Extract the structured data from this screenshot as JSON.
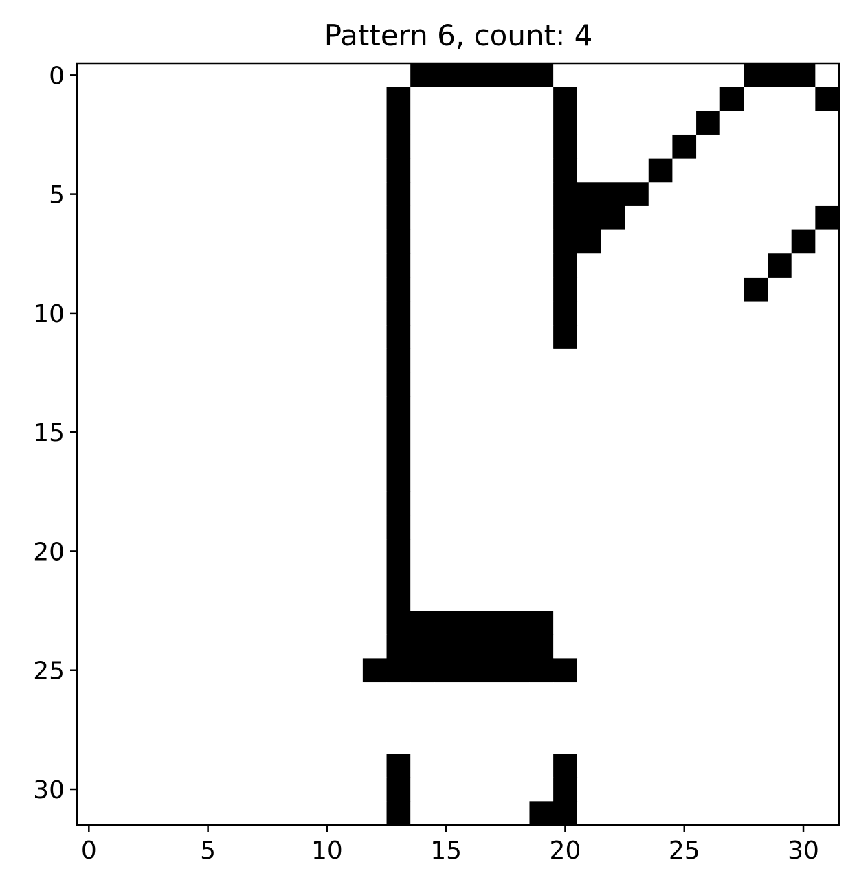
{
  "chart_data": {
    "type": "heatmap",
    "title": "Pattern 6, count: 4",
    "xlabel": "",
    "ylabel": "",
    "colormap": {
      "0": "#ffffff",
      "1": "#000000"
    },
    "xlim": [
      -0.5,
      31.5
    ],
    "ylim": [
      31.5,
      -0.5
    ],
    "x_ticks": [
      0,
      5,
      10,
      15,
      20,
      25,
      30
    ],
    "y_ticks": [
      0,
      5,
      10,
      15,
      20,
      25,
      30
    ],
    "x_tick_labels": [
      "0",
      "5",
      "10",
      "15",
      "20",
      "25",
      "30"
    ],
    "y_tick_labels": [
      "0",
      "5",
      "10",
      "15",
      "20",
      "25",
      "30"
    ],
    "grid": false,
    "rows": [
      "00000000000000111111000000001110",
      "00000000000001000000100000010001",
      "00000000000001000000100000100000",
      "00000000000001000000100001000000",
      "00000000000001000000100010000000",
      "00000000000001000000111100000000",
      "00000000000001000000111000000001",
      "00000000000001000000110000000010",
      "00000000000001000000100000000100",
      "00000000000001000000100000001000",
      "00000000000001000000100000000000",
      "00000000000001000000100000000000",
      "00000000000001000000000000000000",
      "00000000000001000000000000000000",
      "00000000000001000000000000000000",
      "00000000000001000000000000000000",
      "00000000000001000000000000000000",
      "00000000000001000000000000000000",
      "00000000000001000000000000000000",
      "00000000000001000000000000000000",
      "00000000000001000000000000000000",
      "00000000000001000000000000000000",
      "00000000000001000000000000000000",
      "00000000000001111111000000000000",
      "00000000000001111111000000000000",
      "00000000000011111111100000000000",
      "00000000000000000000000000000000",
      "00000000000000000000000000000000",
      "00000000000000000000000000000000",
      "00000000000001000000100000000000",
      "00000000000001000000100000000000",
      "00000000000001000001100000000000"
    ]
  }
}
